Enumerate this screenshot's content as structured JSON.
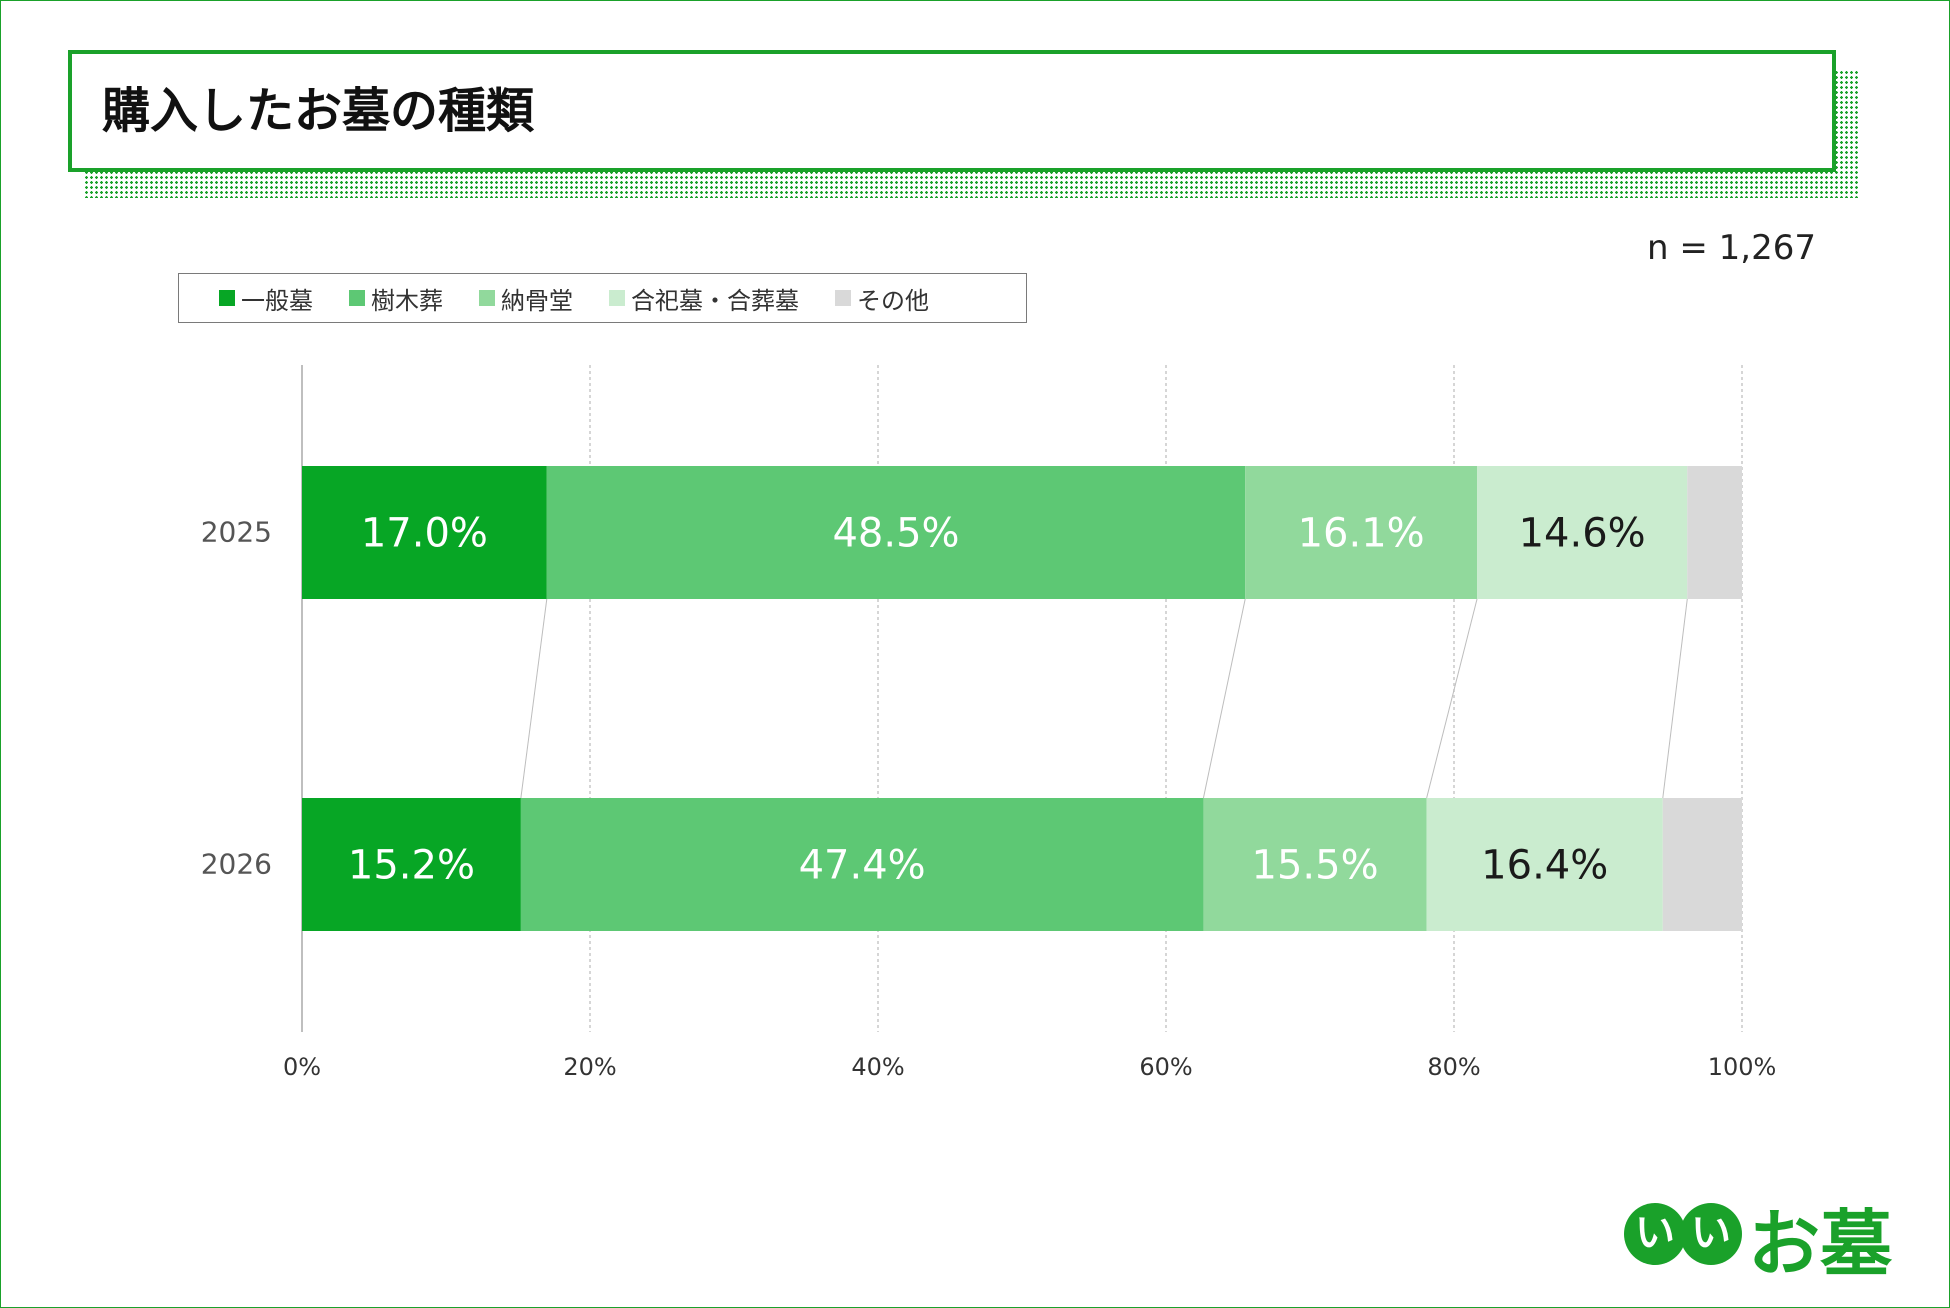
{
  "title": "購入したお墓の種類",
  "sample_size": "n = 1,267",
  "logo": {
    "char1": "い",
    "char2": "い",
    "text": "お墓"
  },
  "colors": {
    "frame": "#1aa12a",
    "series": [
      "#07a625",
      "#5dc874",
      "#91d99c",
      "#caeccf",
      "#d9d9d9"
    ]
  },
  "chart_data": {
    "type": "bar",
    "orientation": "horizontal-stacked-100",
    "categories": [
      "2025",
      "2026"
    ],
    "series": [
      {
        "name": "一般墓",
        "values": [
          17.0,
          15.2
        ],
        "labels": [
          "17.0%",
          "15.2%"
        ]
      },
      {
        "name": "樹木葬",
        "values": [
          48.5,
          47.4
        ],
        "labels": [
          "48.5%",
          "47.4%"
        ]
      },
      {
        "name": "納骨堂",
        "values": [
          16.1,
          15.5
        ],
        "labels": [
          "16.1%",
          "15.5%"
        ]
      },
      {
        "name": "合祀墓・合葬墓",
        "values": [
          14.6,
          16.4
        ],
        "labels": [
          "14.6%",
          "16.4%"
        ]
      },
      {
        "name": "その他",
        "values": [
          3.8,
          5.5
        ],
        "labels": [
          "",
          ""
        ]
      }
    ],
    "x_ticks": [
      "0%",
      "20%",
      "40%",
      "60%",
      "80%",
      "100%"
    ],
    "xlim": [
      0,
      100
    ],
    "grid": true,
    "legend_position": "top-left",
    "series_connectors": true
  }
}
